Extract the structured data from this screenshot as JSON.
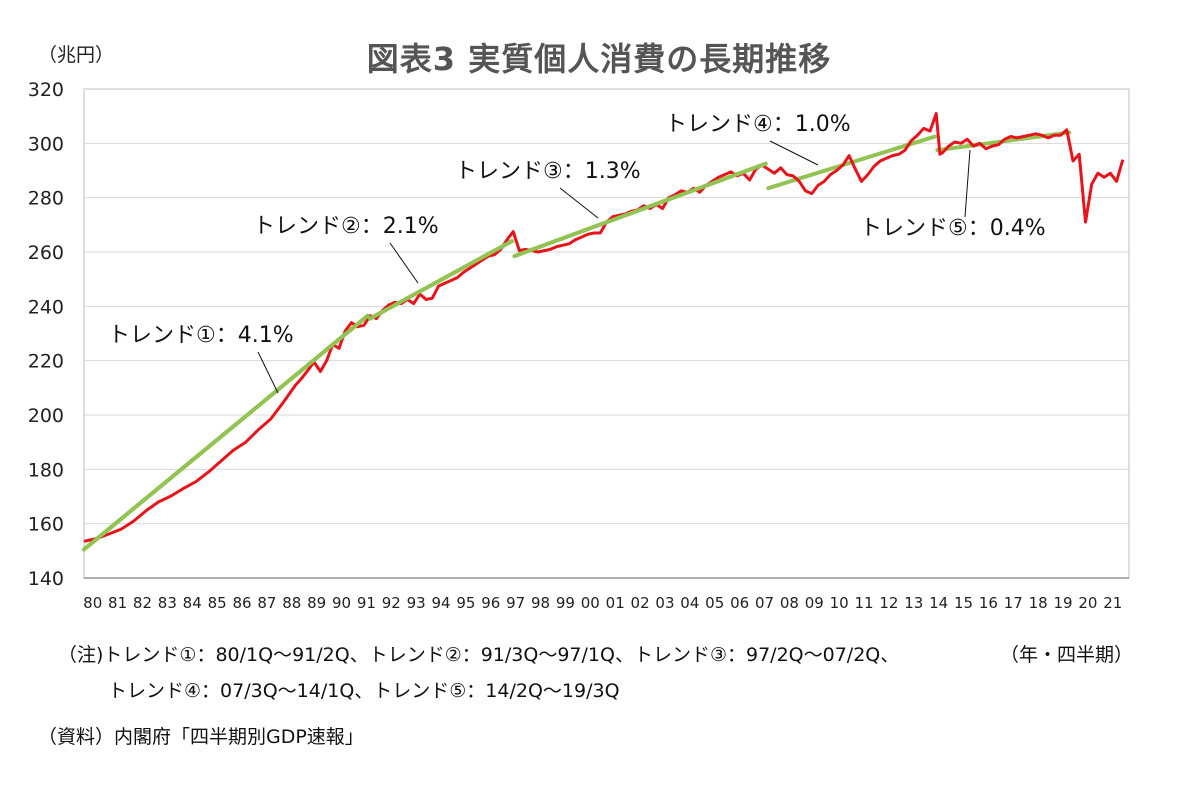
{
  "title": "図表3 実質個人消費の長期推移",
  "y_unit": "（兆円）",
  "x_unit": "（年・四半期）",
  "note_line1": "（注)トレンド①：80/1Q～91/2Q、トレンド②：91/3Q～97/1Q、トレンド③：97/2Q～07/2Q、",
  "note_line2": "トレンド④：07/3Q～14/1Q、トレンド⑤：14/2Q～19/3Q",
  "source": "（資料）内閣府「四半期別GDP速報」",
  "colors": {
    "actual": "#e8141c",
    "trend": "#92c353",
    "grid": "#d9d9d9"
  },
  "chart_data": {
    "type": "line",
    "xlabel": "",
    "ylabel": "",
    "ylim": [
      140,
      320
    ],
    "yticks": [
      140,
      160,
      180,
      200,
      220,
      240,
      260,
      280,
      300,
      320
    ],
    "categories": [
      "80",
      "81",
      "82",
      "83",
      "84",
      "85",
      "86",
      "87",
      "88",
      "89",
      "90",
      "91",
      "92",
      "93",
      "94",
      "95",
      "96",
      "97",
      "98",
      "99",
      "00",
      "01",
      "02",
      "03",
      "04",
      "05",
      "06",
      "07",
      "08",
      "09",
      "10",
      "11",
      "12",
      "13",
      "14",
      "15",
      "16",
      "17",
      "18",
      "19",
      "20",
      "21"
    ],
    "grid": true,
    "series": [
      {
        "type": "actual",
        "points": [
          [
            1980.0,
            153.5
          ],
          [
            1980.5,
            154.5
          ],
          [
            1981.0,
            156.2
          ],
          [
            1981.5,
            158.0
          ],
          [
            1982.0,
            161.0
          ],
          [
            1982.5,
            164.8
          ],
          [
            1983.0,
            168.0
          ],
          [
            1983.5,
            170.2
          ],
          [
            1984.0,
            173.0
          ],
          [
            1984.5,
            175.5
          ],
          [
            1985.0,
            179.0
          ],
          [
            1985.5,
            183.0
          ],
          [
            1986.0,
            187.0
          ],
          [
            1986.5,
            190.0
          ],
          [
            1987.0,
            194.5
          ],
          [
            1987.5,
            198.5
          ],
          [
            1988.0,
            204.5
          ],
          [
            1988.5,
            211.0
          ],
          [
            1988.75,
            213.5
          ],
          [
            1989.0,
            216.5
          ],
          [
            1989.25,
            219.5
          ],
          [
            1989.5,
            216.0
          ],
          [
            1989.75,
            220.0
          ],
          [
            1990.0,
            226.0
          ],
          [
            1990.25,
            224.5
          ],
          [
            1990.5,
            231.0
          ],
          [
            1990.75,
            234.0
          ],
          [
            1991.0,
            232.5
          ],
          [
            1991.25,
            233.0
          ],
          [
            1991.5,
            236.5
          ],
          [
            1991.75,
            235.5
          ],
          [
            1992.0,
            238.5
          ],
          [
            1992.25,
            240.5
          ],
          [
            1992.5,
            241.5
          ],
          [
            1992.75,
            241.0
          ],
          [
            1993.0,
            242.5
          ],
          [
            1993.25,
            241.0
          ],
          [
            1993.5,
            244.5
          ],
          [
            1993.75,
            242.5
          ],
          [
            1994.0,
            243.0
          ],
          [
            1994.25,
            247.5
          ],
          [
            1994.5,
            248.5
          ],
          [
            1994.75,
            249.5
          ],
          [
            1995.0,
            250.5
          ],
          [
            1995.25,
            252.5
          ],
          [
            1995.5,
            254.0
          ],
          [
            1995.75,
            255.5
          ],
          [
            1996.0,
            257.0
          ],
          [
            1996.25,
            258.5
          ],
          [
            1996.5,
            259.0
          ],
          [
            1996.75,
            261.0
          ],
          [
            1997.0,
            264.5
          ],
          [
            1997.25,
            267.5
          ],
          [
            1997.5,
            260.5
          ],
          [
            1997.75,
            261.0
          ],
          [
            1998.0,
            260.5
          ],
          [
            1998.25,
            260.0
          ],
          [
            1998.5,
            260.5
          ],
          [
            1998.75,
            261.0
          ],
          [
            1999.0,
            262.0
          ],
          [
            1999.25,
            262.5
          ],
          [
            1999.5,
            263.0
          ],
          [
            1999.75,
            264.5
          ],
          [
            2000.0,
            265.5
          ],
          [
            2000.25,
            266.5
          ],
          [
            2000.5,
            267.0
          ],
          [
            2000.75,
            267.0
          ],
          [
            2001.0,
            271.0
          ],
          [
            2001.25,
            273.0
          ],
          [
            2001.5,
            273.5
          ],
          [
            2001.75,
            274.0
          ],
          [
            2002.0,
            275.0
          ],
          [
            2002.25,
            275.5
          ],
          [
            2002.5,
            277.0
          ],
          [
            2002.75,
            276.0
          ],
          [
            2003.0,
            277.5
          ],
          [
            2003.25,
            276.0
          ],
          [
            2003.5,
            280.0
          ],
          [
            2003.75,
            281.0
          ],
          [
            2004.0,
            282.5
          ],
          [
            2004.25,
            282.0
          ],
          [
            2004.5,
            283.5
          ],
          [
            2004.75,
            282.0
          ],
          [
            2005.0,
            284.5
          ],
          [
            2005.25,
            286.0
          ],
          [
            2005.5,
            287.5
          ],
          [
            2005.75,
            288.5
          ],
          [
            2006.0,
            289.5
          ],
          [
            2006.25,
            288.0
          ],
          [
            2006.5,
            289.0
          ],
          [
            2006.75,
            286.5
          ],
          [
            2007.0,
            290.5
          ],
          [
            2007.25,
            292.0
          ],
          [
            2007.5,
            290.5
          ],
          [
            2007.75,
            289.0
          ],
          [
            2008.0,
            291.0
          ],
          [
            2008.25,
            288.5
          ],
          [
            2008.5,
            288.0
          ],
          [
            2008.75,
            286.0
          ],
          [
            2009.0,
            282.5
          ],
          [
            2009.25,
            281.5
          ],
          [
            2009.5,
            284.5
          ],
          [
            2009.75,
            286.0
          ],
          [
            2010.0,
            288.5
          ],
          [
            2010.25,
            290.0
          ],
          [
            2010.5,
            292.0
          ],
          [
            2010.75,
            295.5
          ],
          [
            2011.0,
            290.5
          ],
          [
            2011.25,
            286.0
          ],
          [
            2011.5,
            288.5
          ],
          [
            2011.75,
            291.5
          ],
          [
            2012.0,
            293.5
          ],
          [
            2012.25,
            294.5
          ],
          [
            2012.5,
            295.5
          ],
          [
            2012.75,
            296.0
          ],
          [
            2013.0,
            297.5
          ],
          [
            2013.25,
            301.0
          ],
          [
            2013.5,
            303.0
          ],
          [
            2013.75,
            305.5
          ],
          [
            2014.0,
            304.5
          ],
          [
            2014.25,
            311.0
          ],
          [
            2014.4,
            296.0
          ],
          [
            2014.5,
            296.5
          ],
          [
            2014.75,
            299.0
          ],
          [
            2015.0,
            300.5
          ],
          [
            2015.25,
            300.0
          ],
          [
            2015.5,
            301.5
          ],
          [
            2015.75,
            299.0
          ],
          [
            2016.0,
            300.0
          ],
          [
            2016.25,
            298.0
          ],
          [
            2016.5,
            299.0
          ],
          [
            2016.75,
            299.5
          ],
          [
            2017.0,
            301.5
          ],
          [
            2017.25,
            302.5
          ],
          [
            2017.5,
            302.0
          ],
          [
            2017.75,
            302.5
          ],
          [
            2018.0,
            303.0
          ],
          [
            2018.25,
            303.5
          ],
          [
            2018.5,
            303.0
          ],
          [
            2018.75,
            302.0
          ],
          [
            2019.0,
            303.0
          ],
          [
            2019.25,
            303.0
          ],
          [
            2019.5,
            305.0
          ],
          [
            2019.75,
            293.5
          ],
          [
            2020.0,
            296.0
          ],
          [
            2020.25,
            271.0
          ],
          [
            2020.5,
            285.0
          ],
          [
            2020.75,
            289.0
          ],
          [
            2021.0,
            287.5
          ],
          [
            2021.25,
            289.0
          ],
          [
            2021.5,
            286.0
          ],
          [
            2021.75,
            294.0
          ]
        ]
      },
      {
        "type": "trend",
        "label": "トレンド①：4.1%",
        "start": [
          1980.0,
          150.5
        ],
        "end": [
          1991.4,
          236.5
        ]
      },
      {
        "type": "trend",
        "label": "トレンド②：2.1%",
        "start": [
          1991.5,
          235.5
        ],
        "end": [
          1997.2,
          264.0
        ]
      },
      {
        "type": "trend",
        "label": "トレンド③：1.3%",
        "start": [
          1997.3,
          258.5
        ],
        "end": [
          2007.4,
          292.5
        ]
      },
      {
        "type": "trend",
        "label": "トレンド④：1.0%",
        "start": [
          2007.5,
          283.5
        ],
        "end": [
          2014.2,
          302.5
        ]
      },
      {
        "type": "trend",
        "label": "トレンド⑤：0.4%",
        "start": [
          2014.3,
          297.5
        ],
        "end": [
          2019.6,
          304.0
        ]
      }
    ]
  }
}
